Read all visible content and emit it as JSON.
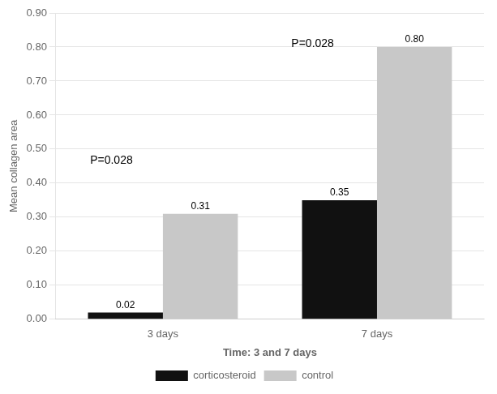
{
  "chart_data": {
    "type": "bar",
    "categories": [
      "3 days",
      "7 days"
    ],
    "series": [
      {
        "name": "corticosteroid",
        "color": "#111111",
        "values": [
          0.02,
          0.35
        ],
        "value_labels": [
          "0.02",
          "0.35"
        ]
      },
      {
        "name": "control",
        "color": "#c8c8c8",
        "values": [
          0.31,
          0.8
        ],
        "value_labels": [
          "0.31",
          "0.80"
        ]
      }
    ],
    "ylabel": "Mean collagen area",
    "xlabel": "Time: 3 and 7 days",
    "ylim": [
      0.0,
      0.9
    ],
    "yticks": [
      {
        "value": 0.0,
        "label": "0.00"
      },
      {
        "value": 0.1,
        "label": "0.10"
      },
      {
        "value": 0.2,
        "label": "0.20"
      },
      {
        "value": 0.3,
        "label": "0.30"
      },
      {
        "value": 0.4,
        "label": "0.40"
      },
      {
        "value": 0.5,
        "label": "0.50"
      },
      {
        "value": 0.6,
        "label": "0.60"
      },
      {
        "value": 0.7,
        "label": "0.70"
      },
      {
        "value": 0.8,
        "label": "0.80"
      },
      {
        "value": 0.9,
        "label": "0.90"
      }
    ],
    "annotations": [
      {
        "text": "P=0.028"
      },
      {
        "text": "P=0.028"
      }
    ],
    "data_labels": true,
    "grid": true,
    "legend": "bottom"
  }
}
